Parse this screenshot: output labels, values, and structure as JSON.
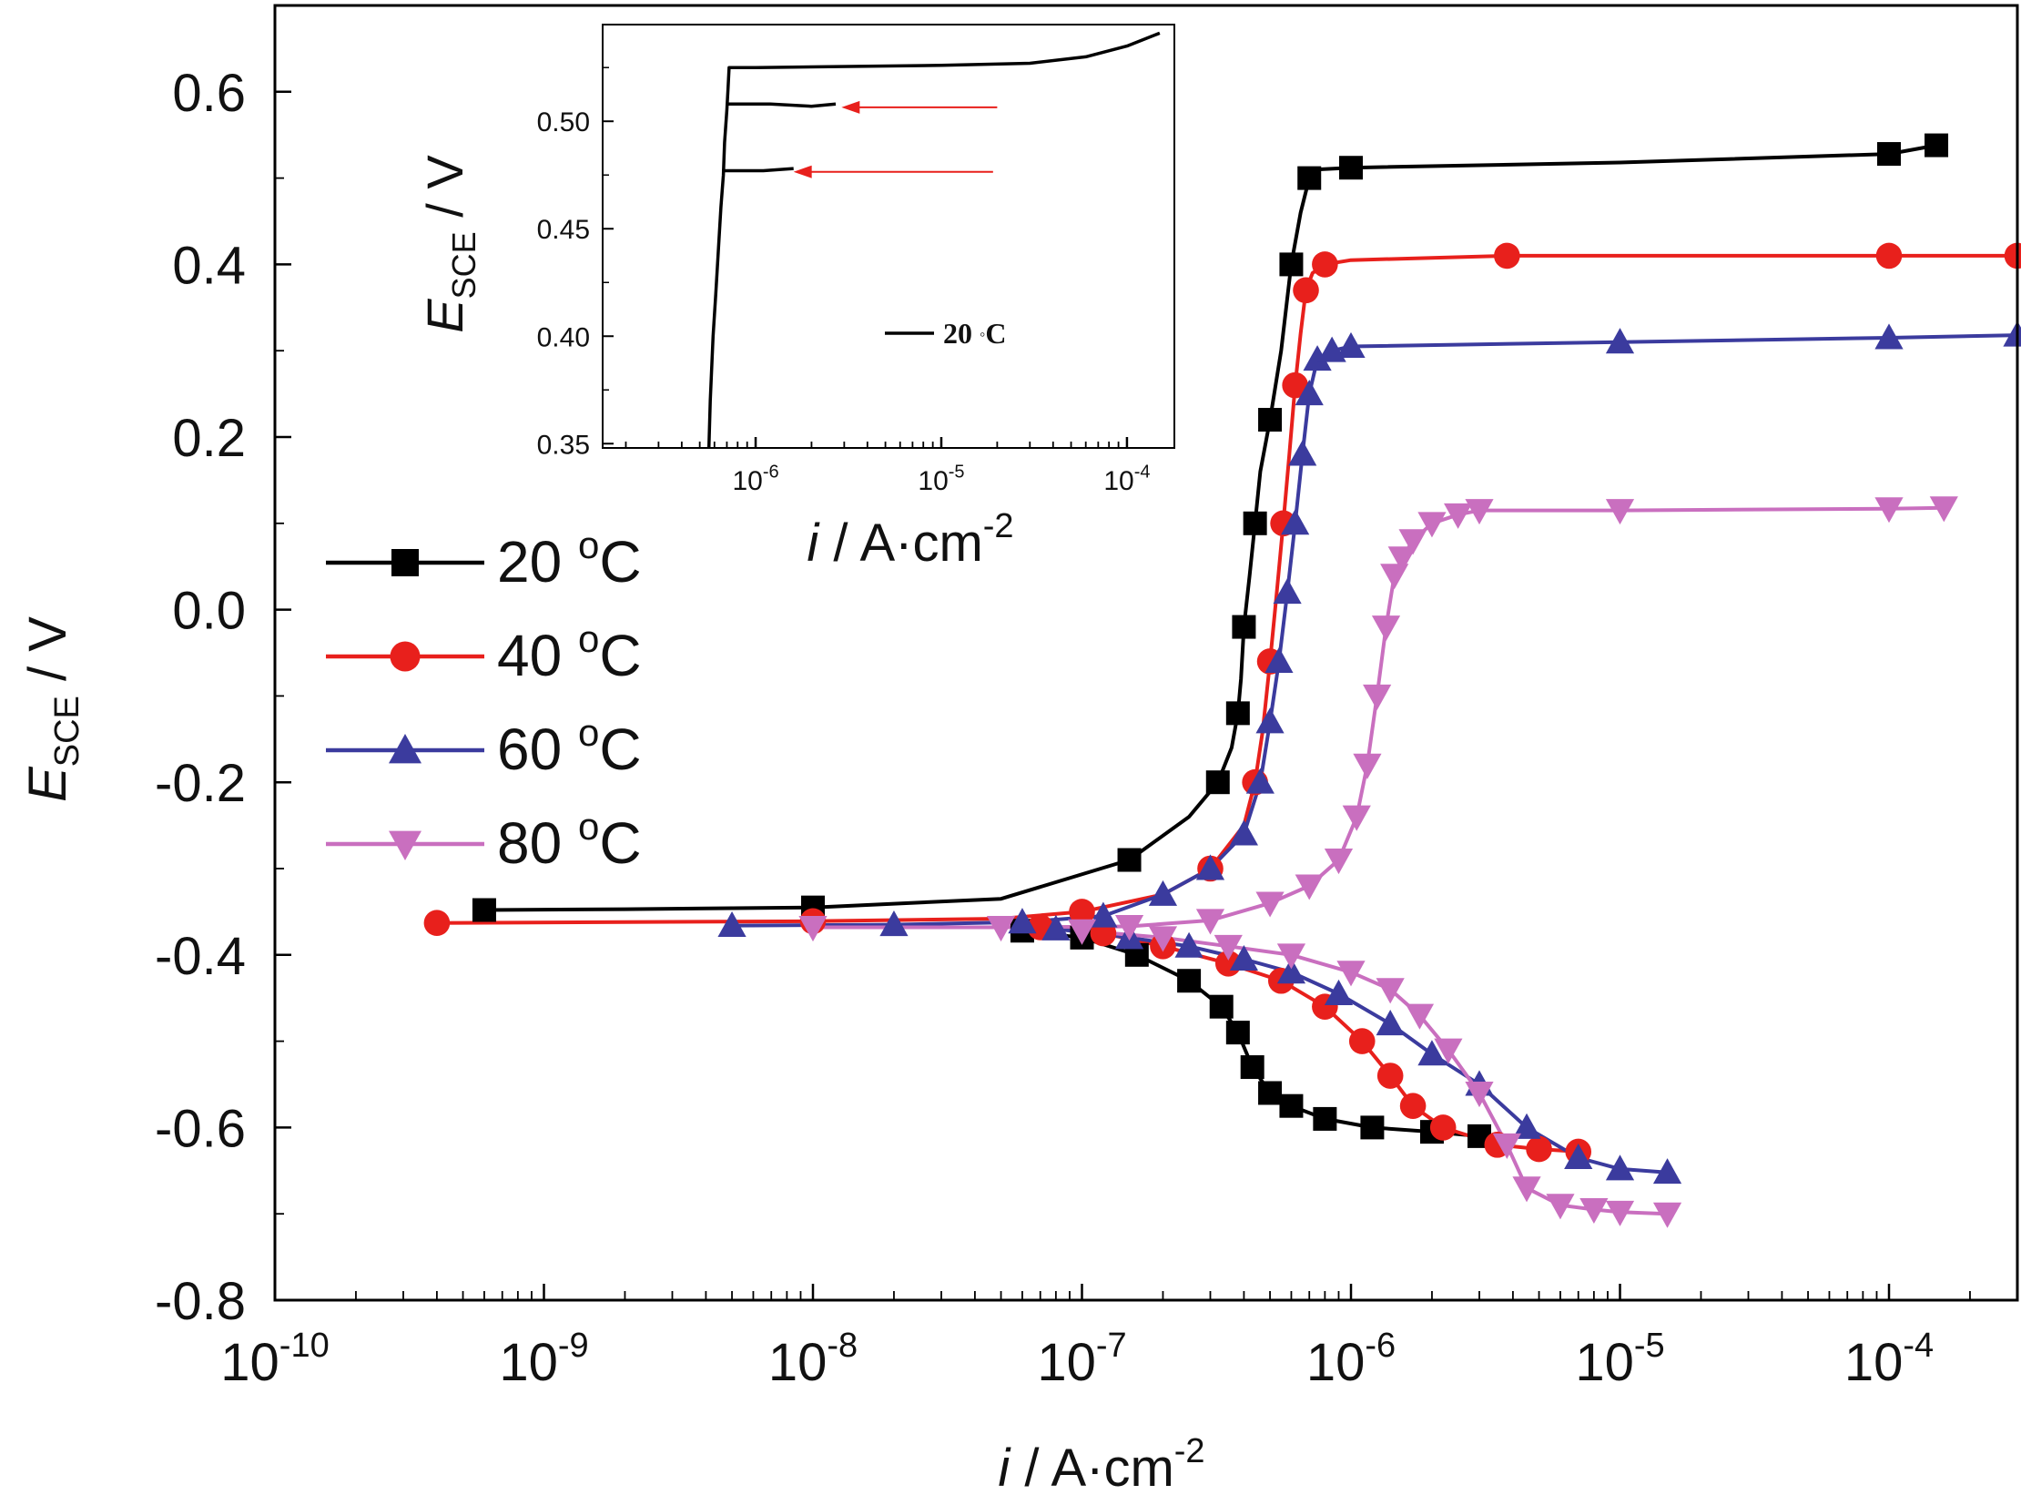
{
  "chart_data": [
    {
      "type": "line",
      "title": "",
      "xlabel": "i / A·cm⁻²",
      "ylabel": "E_SCE / V",
      "x_scale": "log",
      "xlim": [
        1e-10,
        0.0003
      ],
      "ylim": [
        -0.8,
        0.7
      ],
      "x_ticks": [
        {
          "exp": "-10"
        },
        {
          "exp": "-9"
        },
        {
          "exp": "-8"
        },
        {
          "exp": "-7"
        },
        {
          "exp": "-6"
        },
        {
          "exp": "-5"
        },
        {
          "exp": "-4"
        }
      ],
      "y_ticks": [
        "0.6",
        "0.4",
        "0.2",
        "0.0",
        "-0.2",
        "-0.4",
        "-0.6",
        "-0.8"
      ],
      "legend_position": "left-middle",
      "series": [
        {
          "name": "20 °C",
          "color": "#000000",
          "marker": "square",
          "x": [
            6e-10,
            2e-09,
            1e-08,
            5e-08,
            1.5e-07,
            2.5e-07,
            3.2e-07,
            3.6e-07,
            3.8e-07,
            3.9e-07,
            4e-07,
            4.2e-07,
            4.4e-07,
            4.6e-07,
            5e-07,
            5.5e-07,
            6e-07,
            6.5e-07,
            7e-07,
            7.5e-07,
            1e-06,
            1e-05,
            0.0001,
            0.00015
          ],
          "y": [
            -0.348,
            -0.347,
            -0.345,
            -0.335,
            -0.29,
            -0.24,
            -0.2,
            -0.16,
            -0.12,
            -0.08,
            -0.02,
            0.04,
            0.1,
            0.16,
            0.22,
            0.3,
            0.4,
            0.46,
            0.5,
            0.51,
            0.512,
            0.518,
            0.528,
            0.538
          ]
        },
        {
          "name": "20 °C",
          "color": "#000000",
          "marker": "square",
          "x": [
            6e-08,
            1e-07,
            1.6e-07,
            2.5e-07,
            3.3e-07,
            3.8e-07,
            4.3e-07,
            5e-07,
            6e-07,
            8e-07,
            1.2e-06,
            2e-06,
            3e-06
          ],
          "y": [
            -0.372,
            -0.38,
            -0.4,
            -0.43,
            -0.46,
            -0.49,
            -0.53,
            -0.56,
            -0.575,
            -0.59,
            -0.6,
            -0.605,
            -0.61
          ]
        },
        {
          "name": "40 °C",
          "color": "#e8201c",
          "marker": "circle",
          "x": [
            4e-10,
            2e-09,
            1e-08,
            5e-08,
            1e-07,
            2e-07,
            3e-07,
            4e-07,
            4.4e-07,
            4.7e-07,
            5e-07,
            5.3e-07,
            5.6e-07,
            5.9e-07,
            6.2e-07,
            6.5e-07,
            6.8e-07,
            7.2e-07,
            8e-07,
            1e-06,
            3.8e-06,
            1e-05,
            0.0001,
            0.0003
          ],
          "y": [
            -0.363,
            -0.362,
            -0.361,
            -0.358,
            -0.35,
            -0.33,
            -0.3,
            -0.25,
            -0.2,
            -0.14,
            -0.06,
            0.02,
            0.1,
            0.18,
            0.26,
            0.32,
            0.37,
            0.39,
            0.4,
            0.405,
            0.41,
            0.41,
            0.41,
            0.41
          ]
        },
        {
          "name": "40 °C",
          "color": "#e8201c",
          "marker": "circle",
          "x": [
            7e-08,
            1.2e-07,
            2e-07,
            3.5e-07,
            5.5e-07,
            8e-07,
            1.1e-06,
            1.4e-06,
            1.7e-06,
            2.2e-06,
            3.5e-06,
            5e-06,
            7e-06
          ],
          "y": [
            -0.368,
            -0.375,
            -0.39,
            -0.41,
            -0.43,
            -0.46,
            -0.5,
            -0.54,
            -0.575,
            -0.6,
            -0.62,
            -0.625,
            -0.628
          ]
        },
        {
          "name": "60 °C",
          "color": "#3b3b9e",
          "marker": "triangle-up",
          "x": [
            5e-09,
            2e-08,
            6e-08,
            1.2e-07,
            2e-07,
            3e-07,
            4e-07,
            4.6e-07,
            5e-07,
            5.4e-07,
            5.8e-07,
            6.2e-07,
            6.6e-07,
            7e-07,
            7.5e-07,
            8.5e-07,
            1e-06,
            1e-05,
            0.0001,
            0.0003
          ],
          "y": [
            -0.366,
            -0.365,
            -0.362,
            -0.355,
            -0.33,
            -0.3,
            -0.26,
            -0.2,
            -0.13,
            -0.06,
            0.02,
            0.1,
            0.18,
            0.25,
            0.29,
            0.3,
            0.305,
            0.31,
            0.315,
            0.318
          ]
        },
        {
          "name": "60 °C",
          "color": "#3b3b9e",
          "marker": "triangle-up",
          "x": [
            8e-08,
            1.5e-07,
            2.5e-07,
            4e-07,
            6e-07,
            9e-07,
            1.4e-06,
            2e-06,
            3e-06,
            4.5e-06,
            7e-06,
            1e-05,
            1.5e-05
          ],
          "y": [
            -0.37,
            -0.38,
            -0.39,
            -0.405,
            -0.42,
            -0.445,
            -0.48,
            -0.515,
            -0.55,
            -0.6,
            -0.635,
            -0.648,
            -0.652
          ]
        },
        {
          "name": "80 °C",
          "color": "#c96fbf",
          "marker": "triangle-down",
          "x": [
            1e-08,
            5e-08,
            1.5e-07,
            3e-07,
            5e-07,
            7e-07,
            9e-07,
            1.05e-06,
            1.15e-06,
            1.25e-06,
            1.35e-06,
            1.45e-06,
            1.55e-06,
            1.7e-06,
            2e-06,
            2.5e-06,
            3e-06,
            1e-05,
            0.0001,
            0.00016
          ],
          "y": [
            -0.368,
            -0.368,
            -0.367,
            -0.36,
            -0.34,
            -0.32,
            -0.29,
            -0.24,
            -0.18,
            -0.1,
            -0.02,
            0.04,
            0.06,
            0.08,
            0.1,
            0.11,
            0.115,
            0.115,
            0.117,
            0.118
          ]
        },
        {
          "name": "80 °C",
          "color": "#c96fbf",
          "marker": "triangle-down",
          "x": [
            1e-07,
            2e-07,
            3.5e-07,
            6e-07,
            1e-06,
            1.4e-06,
            1.8e-06,
            2.3e-06,
            3e-06,
            3.8e-06,
            4.5e-06,
            6e-06,
            8e-06,
            1e-05,
            1.5e-05
          ],
          "y": [
            -0.372,
            -0.38,
            -0.39,
            -0.4,
            -0.42,
            -0.44,
            -0.47,
            -0.51,
            -0.56,
            -0.62,
            -0.67,
            -0.69,
            -0.695,
            -0.698,
            -0.7
          ]
        }
      ]
    },
    {
      "type": "line",
      "title": "",
      "xlabel": "i / A·cm⁻²",
      "ylabel": "E_SCE / V",
      "x_scale": "log",
      "xlim": [
        1.5e-07,
        0.00018
      ],
      "ylim": [
        0.348,
        0.545
      ],
      "x_ticks": [
        {
          "exp": "-6"
        },
        {
          "exp": "-5"
        },
        {
          "exp": "-4"
        }
      ],
      "y_ticks": [
        "0.50",
        "0.45",
        "0.40",
        "0.35"
      ],
      "legend_position": "center-right",
      "series": [
        {
          "name": "20 °C",
          "color": "#000000",
          "marker": "none",
          "x": [
            5.6e-07,
            5.7e-07,
            5.9e-07,
            6.1e-07,
            6.3e-07,
            6.5e-07,
            6.7e-07,
            6.8e-07,
            7e-07,
            7.1e-07,
            7.2e-07,
            1e-06,
            1e-05,
            3e-05,
            6e-05,
            0.0001,
            0.00015
          ],
          "y": [
            0.348,
            0.37,
            0.4,
            0.42,
            0.44,
            0.46,
            0.475,
            0.49,
            0.505,
            0.515,
            0.525,
            0.525,
            0.526,
            0.527,
            0.53,
            0.535,
            0.541
          ]
        },
        {
          "name": "",
          "color": "#000000",
          "marker": "none",
          "x": [
            7e-07,
            1.2e-06,
            2e-06,
            2.7e-06
          ],
          "y": [
            0.508,
            0.508,
            0.507,
            0.508
          ]
        },
        {
          "name": "",
          "color": "#000000",
          "marker": "none",
          "x": [
            6.6e-07,
            1.1e-06,
            1.6e-06
          ],
          "y": [
            0.477,
            0.477,
            0.478
          ]
        }
      ],
      "annotations": [
        {
          "type": "arrow",
          "color": "#e8201c",
          "from": [
            2e-05,
            0.5065
          ],
          "to": [
            2.9e-06,
            0.5065
          ]
        },
        {
          "type": "arrow",
          "color": "#e8201c",
          "from": [
            1.9e-05,
            0.4765
          ],
          "to": [
            1.6e-06,
            0.4765
          ]
        }
      ]
    }
  ]
}
